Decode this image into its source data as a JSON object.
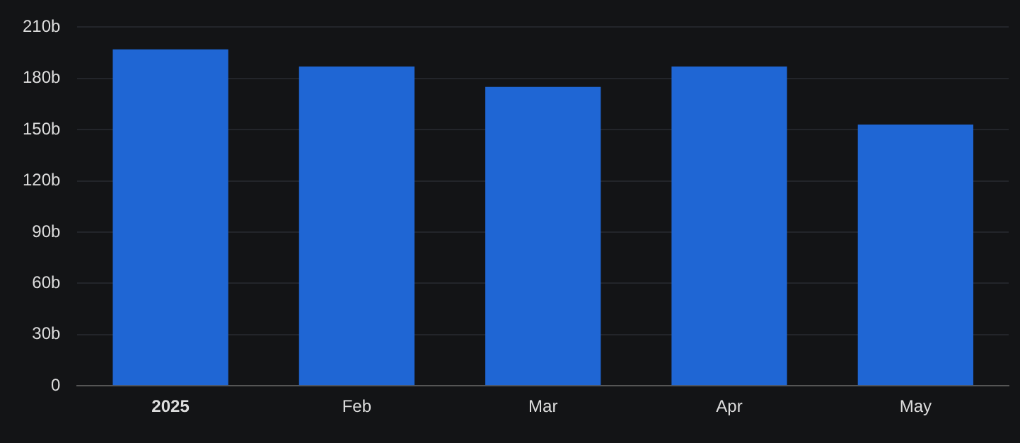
{
  "chart_data": {
    "type": "bar",
    "categories": [
      "2025",
      "Feb",
      "Mar",
      "Apr",
      "May"
    ],
    "values": [
      197,
      187,
      175,
      187,
      153
    ],
    "color": "#1f66d4",
    "ylim": [
      0,
      210
    ],
    "yticks": [
      0,
      {
        "value": 30,
        "label": "30b"
      },
      {
        "value": 60,
        "label": "60b"
      },
      {
        "value": 90,
        "label": "90b"
      },
      {
        "value": 120,
        "label": "120b"
      },
      {
        "value": 150,
        "label": "150b"
      },
      {
        "value": 180,
        "label": "180b"
      },
      {
        "value": 210,
        "label": "210b"
      }
    ],
    "grid": "y",
    "legend": false
  }
}
